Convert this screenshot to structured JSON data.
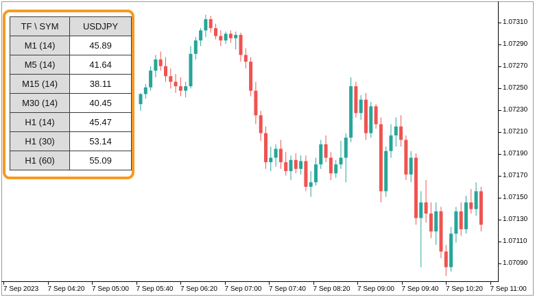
{
  "colors": {
    "bull": "#26a69a",
    "bear": "#ef5350",
    "panel_border": "#f59a23"
  },
  "table": {
    "header": {
      "tf_label": "TF \\ SYM",
      "symbol": "USDJPY"
    },
    "rows": [
      {
        "tf": "M1 (14)",
        "value": "45.89"
      },
      {
        "tf": "M5 (14)",
        "value": "41.64"
      },
      {
        "tf": "M15 (14)",
        "value": "38.11"
      },
      {
        "tf": "M30 (14)",
        "value": "40.45"
      },
      {
        "tf": "H1 (14)",
        "value": "45.47"
      },
      {
        "tf": "H1 (30)",
        "value": "53.14"
      },
      {
        "tf": "H1 (60)",
        "value": "55.09"
      }
    ]
  },
  "price_axis": [
    "1.07310",
    "1.07290",
    "1.07270",
    "1.07250",
    "1.07230",
    "1.07210",
    "1.07190",
    "1.07170",
    "1.07150",
    "1.07130",
    "1.07110",
    "1.07090"
  ],
  "time_axis": [
    "7 Sep 2023",
    "7 Sep 04:20",
    "7 Sep 05:00",
    "7 Sep 05:40",
    "7 Sep 06:20",
    "7 Sep 07:00",
    "7 Sep 07:40",
    "7 Sep 08:20",
    "7 Sep 09:00",
    "7 Sep 09:40",
    "7 Sep 10:20",
    "7 Sep 11:00"
  ],
  "chart_data": {
    "type": "candlestick",
    "symbol": "USDJPY",
    "ylim": [
      1.0708,
      1.0733
    ],
    "candles": [
      {
        "o": 1.07238,
        "h": 1.07248,
        "l": 1.07232,
        "c": 1.07247
      },
      {
        "o": 1.07247,
        "h": 1.07256,
        "l": 1.07243,
        "c": 1.07253
      },
      {
        "o": 1.07253,
        "h": 1.07272,
        "l": 1.0725,
        "c": 1.07268
      },
      {
        "o": 1.07268,
        "h": 1.07282,
        "l": 1.07262,
        "c": 1.07278
      },
      {
        "o": 1.07278,
        "h": 1.07285,
        "l": 1.07268,
        "c": 1.07272
      },
      {
        "o": 1.07272,
        "h": 1.0728,
        "l": 1.07258,
        "c": 1.07263
      },
      {
        "o": 1.07263,
        "h": 1.0727,
        "l": 1.07252,
        "c": 1.07258
      },
      {
        "o": 1.07258,
        "h": 1.07265,
        "l": 1.07248,
        "c": 1.07254
      },
      {
        "o": 1.07254,
        "h": 1.07262,
        "l": 1.07245,
        "c": 1.0725
      },
      {
        "o": 1.0725,
        "h": 1.07258,
        "l": 1.07244,
        "c": 1.07254
      },
      {
        "o": 1.07254,
        "h": 1.0729,
        "l": 1.07252,
        "c": 1.07283
      },
      {
        "o": 1.07283,
        "h": 1.07298,
        "l": 1.07278,
        "c": 1.07295
      },
      {
        "o": 1.07295,
        "h": 1.07306,
        "l": 1.0729,
        "c": 1.07304
      },
      {
        "o": 1.07304,
        "h": 1.07318,
        "l": 1.07298,
        "c": 1.07314
      },
      {
        "o": 1.07314,
        "h": 1.07317,
        "l": 1.07302,
        "c": 1.07306
      },
      {
        "o": 1.07306,
        "h": 1.0731,
        "l": 1.07296,
        "c": 1.07299
      },
      {
        "o": 1.07299,
        "h": 1.07304,
        "l": 1.0729,
        "c": 1.07295
      },
      {
        "o": 1.07295,
        "h": 1.07303,
        "l": 1.07292,
        "c": 1.07301
      },
      {
        "o": 1.07301,
        "h": 1.07304,
        "l": 1.07293,
        "c": 1.07297
      },
      {
        "o": 1.07297,
        "h": 1.07303,
        "l": 1.07287,
        "c": 1.073
      },
      {
        "o": 1.073,
        "h": 1.07302,
        "l": 1.07276,
        "c": 1.07282
      },
      {
        "o": 1.07282,
        "h": 1.07288,
        "l": 1.0727,
        "c": 1.07276
      },
      {
        "o": 1.07276,
        "h": 1.0728,
        "l": 1.07245,
        "c": 1.0725
      },
      {
        "o": 1.0725,
        "h": 1.07258,
        "l": 1.0722,
        "c": 1.07228
      },
      {
        "o": 1.07228,
        "h": 1.07232,
        "l": 1.07205,
        "c": 1.07212
      },
      {
        "o": 1.07212,
        "h": 1.07218,
        "l": 1.0718,
        "c": 1.07186
      },
      {
        "o": 1.07186,
        "h": 1.072,
        "l": 1.07178,
        "c": 1.0719
      },
      {
        "o": 1.0719,
        "h": 1.07202,
        "l": 1.07182,
        "c": 1.07198
      },
      {
        "o": 1.07198,
        "h": 1.07206,
        "l": 1.0718,
        "c": 1.07186
      },
      {
        "o": 1.07186,
        "h": 1.07195,
        "l": 1.07174,
        "c": 1.07178
      },
      {
        "o": 1.07178,
        "h": 1.07192,
        "l": 1.0717,
        "c": 1.07188
      },
      {
        "o": 1.07188,
        "h": 1.07194,
        "l": 1.07176,
        "c": 1.0718
      },
      {
        "o": 1.0718,
        "h": 1.07192,
        "l": 1.07175,
        "c": 1.07187
      },
      {
        "o": 1.07187,
        "h": 1.07192,
        "l": 1.0716,
        "c": 1.07164
      },
      {
        "o": 1.07164,
        "h": 1.07178,
        "l": 1.07155,
        "c": 1.07168
      },
      {
        "o": 1.07168,
        "h": 1.0719,
        "l": 1.07165,
        "c": 1.07184
      },
      {
        "o": 1.07184,
        "h": 1.07206,
        "l": 1.0718,
        "c": 1.07202
      },
      {
        "o": 1.07202,
        "h": 1.0721,
        "l": 1.07186,
        "c": 1.0719
      },
      {
        "o": 1.0719,
        "h": 1.07195,
        "l": 1.0717,
        "c": 1.07176
      },
      {
        "o": 1.07176,
        "h": 1.07188,
        "l": 1.07172,
        "c": 1.07184
      },
      {
        "o": 1.07184,
        "h": 1.07205,
        "l": 1.0718,
        "c": 1.0719
      },
      {
        "o": 1.0719,
        "h": 1.07212,
        "l": 1.07168,
        "c": 1.07208
      },
      {
        "o": 1.07208,
        "h": 1.07262,
        "l": 1.07204,
        "c": 1.07254
      },
      {
        "o": 1.07254,
        "h": 1.07258,
        "l": 1.07226,
        "c": 1.0723
      },
      {
        "o": 1.0723,
        "h": 1.07246,
        "l": 1.07224,
        "c": 1.07242
      },
      {
        "o": 1.07242,
        "h": 1.07248,
        "l": 1.07206,
        "c": 1.07212
      },
      {
        "o": 1.07212,
        "h": 1.0724,
        "l": 1.07208,
        "c": 1.07236
      },
      {
        "o": 1.07236,
        "h": 1.07238,
        "l": 1.07216,
        "c": 1.0722
      },
      {
        "o": 1.0722,
        "h": 1.07226,
        "l": 1.0715,
        "c": 1.0716
      },
      {
        "o": 1.0716,
        "h": 1.072,
        "l": 1.07155,
        "c": 1.07196
      },
      {
        "o": 1.07196,
        "h": 1.0722,
        "l": 1.0719,
        "c": 1.0721
      },
      {
        "o": 1.0721,
        "h": 1.07226,
        "l": 1.072,
        "c": 1.07218
      },
      {
        "o": 1.07218,
        "h": 1.07228,
        "l": 1.072,
        "c": 1.07206
      },
      {
        "o": 1.07206,
        "h": 1.0721,
        "l": 1.0717,
        "c": 1.07175
      },
      {
        "o": 1.07175,
        "h": 1.07196,
        "l": 1.07168,
        "c": 1.0719
      },
      {
        "o": 1.0719,
        "h": 1.07194,
        "l": 1.0713,
        "c": 1.07136
      },
      {
        "o": 1.07136,
        "h": 1.0716,
        "l": 1.07092,
        "c": 1.0715
      },
      {
        "o": 1.0715,
        "h": 1.0717,
        "l": 1.07132,
        "c": 1.0714
      },
      {
        "o": 1.0714,
        "h": 1.0715,
        "l": 1.07118,
        "c": 1.07124
      },
      {
        "o": 1.07124,
        "h": 1.0715,
        "l": 1.07112,
        "c": 1.07142
      },
      {
        "o": 1.07142,
        "h": 1.07146,
        "l": 1.071,
        "c": 1.07106
      },
      {
        "o": 1.07106,
        "h": 1.07112,
        "l": 1.07084,
        "c": 1.07092
      },
      {
        "o": 1.07092,
        "h": 1.07128,
        "l": 1.07088,
        "c": 1.07122
      },
      {
        "o": 1.07122,
        "h": 1.07146,
        "l": 1.07114,
        "c": 1.07142
      },
      {
        "o": 1.07142,
        "h": 1.0715,
        "l": 1.0712,
        "c": 1.07126
      },
      {
        "o": 1.07126,
        "h": 1.07156,
        "l": 1.07122,
        "c": 1.0715
      },
      {
        "o": 1.0715,
        "h": 1.07162,
        "l": 1.0714,
        "c": 1.07144
      },
      {
        "o": 1.07144,
        "h": 1.07168,
        "l": 1.07138,
        "c": 1.0716
      },
      {
        "o": 1.0716,
        "h": 1.07164,
        "l": 1.07124,
        "c": 1.0713
      }
    ]
  }
}
